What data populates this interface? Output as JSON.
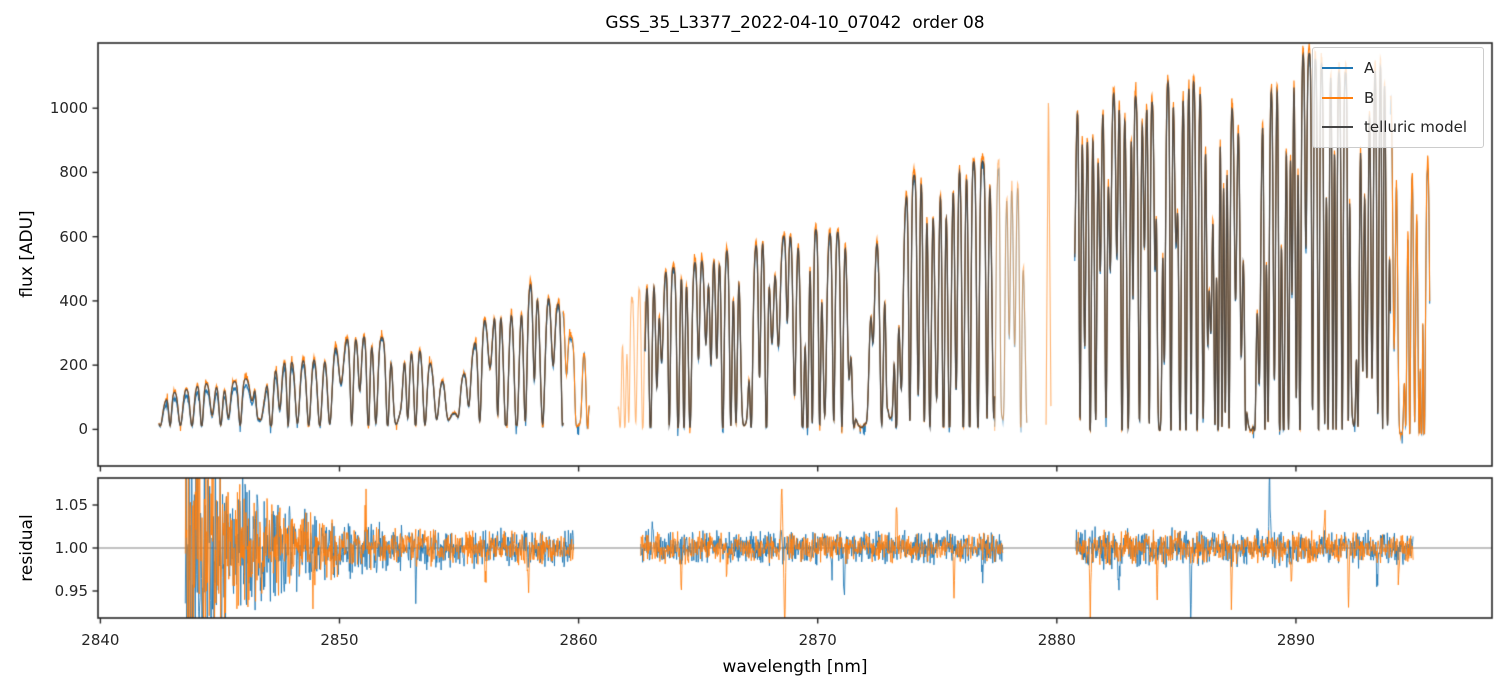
{
  "title": "GSS_35_L3377_2022-04-10_07042  order 08",
  "chart_data": {
    "type": "line",
    "title": "GSS_35_L3377_2022-04-10_07042  order 08",
    "xlabel": "wavelength [nm]",
    "xlim": [
      2839.9,
      2898.2
    ],
    "xticks": [
      2840,
      2850,
      2860,
      2870,
      2880,
      2890
    ],
    "xtick_labels": [
      "2840",
      "2850",
      "2860",
      "2870",
      "2880",
      "2890"
    ],
    "grid": false,
    "panels": [
      {
        "name": "flux",
        "ylabel": "flux [ADU]",
        "ylim": [
          -114,
          1203
        ],
        "yticks": [
          0,
          200,
          400,
          600,
          800,
          1000
        ],
        "ytick_labels": [
          "0",
          "200",
          "400",
          "600",
          "800",
          "1000"
        ],
        "xtick_labels_visible": false
      },
      {
        "name": "residual",
        "ylabel": "residual",
        "ylim": [
          0.9186,
          1.0814
        ],
        "yticks": [
          0.95,
          1.0,
          1.05
        ],
        "ytick_labels": [
          "0.95",
          "1.00",
          "1.05"
        ],
        "hline": 1.0,
        "hline_color": "#808080",
        "xtick_labels_visible": true
      }
    ],
    "legend": {
      "position": "upper right",
      "items": [
        {
          "label": "A",
          "color": "#1f77b4"
        },
        {
          "label": "B",
          "color": "#ff7f0e"
        },
        {
          "label": "telluric model",
          "color": "#454545"
        }
      ]
    },
    "series_colors": {
      "A": "#1f77b4",
      "B": "#ff7f0e",
      "model": "#454545"
    },
    "flux_segments": [
      {
        "x0": 2842.45,
        "x1": 2859.35,
        "series": [
          "A",
          "B",
          "model"
        ],
        "alpha": 1,
        "floor": 12,
        "envelope": [
          [
            2842.45,
            55
          ],
          [
            2842.8,
            100
          ],
          [
            2843.2,
            125
          ],
          [
            2843.7,
            130
          ],
          [
            2844.3,
            145
          ],
          [
            2845.0,
            150
          ],
          [
            2845.7,
            150
          ],
          [
            2846.3,
            165
          ],
          [
            2847.0,
            205
          ],
          [
            2847.7,
            215
          ],
          [
            2848.4,
            225
          ],
          [
            2849.0,
            235
          ],
          [
            2849.6,
            260
          ],
          [
            2850.1,
            285
          ],
          [
            2850.7,
            295
          ],
          [
            2851.3,
            300
          ],
          [
            2851.9,
            285
          ],
          [
            2852.4,
            235
          ],
          [
            2852.9,
            255
          ],
          [
            2853.3,
            270
          ],
          [
            2853.9,
            205
          ],
          [
            2854.3,
            160
          ],
          [
            2854.9,
            140
          ],
          [
            2855.4,
            200
          ],
          [
            2855.9,
            340
          ],
          [
            2856.5,
            385
          ],
          [
            2857.1,
            420
          ],
          [
            2857.7,
            450
          ],
          [
            2858.1,
            465
          ],
          [
            2858.6,
            445
          ],
          [
            2859.0,
            410
          ],
          [
            2859.35,
            375
          ]
        ],
        "lines": {
          "spacing": [
            0.3,
            0.5
          ],
          "width": [
            0.075,
            0.14
          ],
          "sat_frac": 0.5
        },
        "troughs": [
          [
            2846.65,
            0.16,
            0.12
          ],
          [
            2852.45,
            0.22,
            0.2
          ],
          [
            2854.7,
            0.26,
            0.3
          ]
        ]
      },
      {
        "x0": 2859.35,
        "x1": 2860.45,
        "series": [
          "A",
          "B"
        ],
        "alpha": 1,
        "floor": 10,
        "envelope": [
          [
            2859.35,
            375
          ],
          [
            2859.6,
            300
          ],
          [
            2859.9,
            250
          ],
          [
            2860.3,
            245
          ],
          [
            2860.45,
            120
          ]
        ],
        "lines": {
          "spacing": [
            0.32,
            0.45
          ],
          "width": [
            0.07,
            0.12
          ],
          "sat_frac": 0.4
        },
        "troughs": [
          [
            2860.0,
            0.16,
            0.03
          ]
        ]
      },
      {
        "x0": 2861.65,
        "x1": 2862.78,
        "series": [
          "B"
        ],
        "alpha": 0.55,
        "floor": 4,
        "envelope": [
          [
            2861.65,
            150
          ],
          [
            2861.8,
            470
          ],
          [
            2862.0,
            450
          ],
          [
            2862.2,
            410
          ],
          [
            2862.45,
            430
          ],
          [
            2862.65,
            480
          ],
          [
            2862.78,
            520
          ]
        ],
        "lines": {
          "spacing": [
            0.16,
            0.3
          ],
          "width": [
            0.05,
            0.09
          ],
          "sat_frac": 0.75
        },
        "troughs": []
      },
      {
        "x0": 2862.78,
        "x1": 2877.4,
        "series": [
          "A",
          "B",
          "model"
        ],
        "alpha": 1,
        "floor": 5,
        "envelope": [
          [
            2862.78,
            520
          ],
          [
            2863.4,
            500
          ],
          [
            2864.0,
            505
          ],
          [
            2864.6,
            520
          ],
          [
            2865.2,
            535
          ],
          [
            2865.8,
            550
          ],
          [
            2866.4,
            570
          ],
          [
            2867.0,
            560
          ],
          [
            2867.6,
            590
          ],
          [
            2868.1,
            635
          ],
          [
            2868.5,
            605
          ],
          [
            2869.2,
            615
          ],
          [
            2870.0,
            625
          ],
          [
            2870.8,
            620
          ],
          [
            2871.4,
            610
          ],
          [
            2872.5,
            605
          ],
          [
            2873.0,
            640
          ],
          [
            2873.5,
            700
          ],
          [
            2874.0,
            790
          ],
          [
            2874.5,
            830
          ],
          [
            2875.0,
            850
          ],
          [
            2875.5,
            845
          ],
          [
            2876.0,
            830
          ],
          [
            2876.4,
            840
          ],
          [
            2876.9,
            835
          ],
          [
            2877.4,
            830
          ]
        ],
        "lines": {
          "spacing": [
            0.2,
            0.38
          ],
          "width": [
            0.06,
            0.11
          ],
          "sat_frac": 0.62
        },
        "troughs": [
          [
            2866.95,
            0.2,
            0.03
          ],
          [
            2871.8,
            0.4,
            0.012
          ],
          [
            2873.05,
            0.16,
            0.05
          ]
        ]
      },
      {
        "x0": 2877.4,
        "x1": 2878.75,
        "series": [
          "A",
          "B"
        ],
        "alpha": 0.5,
        "floor": 5,
        "envelope": [
          [
            2877.4,
            830
          ],
          [
            2877.8,
            830
          ],
          [
            2878.2,
            840
          ],
          [
            2878.5,
            790
          ],
          [
            2878.7,
            300
          ],
          [
            2878.75,
            60
          ]
        ],
        "lines": {
          "spacing": [
            0.22,
            0.4
          ],
          "width": [
            0.06,
            0.1
          ],
          "sat_frac": 0.5
        },
        "troughs": [
          [
            2877.72,
            0.1,
            0.06
          ]
        ]
      },
      {
        "x0": 2879.55,
        "x1": 2879.76,
        "series": [
          "B"
        ],
        "alpha": 0.6,
        "floor": 0,
        "envelope": [
          [
            2879.55,
            15
          ],
          [
            2879.65,
            1045
          ],
          [
            2879.76,
            15
          ]
        ],
        "lines": null,
        "troughs": []
      },
      {
        "x0": 2880.75,
        "x1": 2893.95,
        "series": [
          "A",
          "B",
          "model"
        ],
        "alpha": 1,
        "floor": -5,
        "envelope": [
          [
            2880.75,
            1030
          ],
          [
            2881.3,
            980
          ],
          [
            2881.9,
            1050
          ],
          [
            2882.6,
            1060
          ],
          [
            2883.3,
            1040
          ],
          [
            2884.0,
            1030
          ],
          [
            2884.8,
            1105
          ],
          [
            2885.4,
            1100
          ],
          [
            2886.0,
            1080
          ],
          [
            2886.6,
            1060
          ],
          [
            2887.2,
            1020
          ],
          [
            2887.8,
            990
          ],
          [
            2888.6,
            1010
          ],
          [
            2889.2,
            1120
          ],
          [
            2889.8,
            1170
          ],
          [
            2890.4,
            1180
          ],
          [
            2891.0,
            1150
          ],
          [
            2891.6,
            1120
          ],
          [
            2892.2,
            1110
          ],
          [
            2892.8,
            1130
          ],
          [
            2893.4,
            1160
          ],
          [
            2893.95,
            1190
          ]
        ],
        "lines": {
          "spacing": [
            0.13,
            0.28
          ],
          "width": [
            0.042,
            0.085
          ],
          "sat_frac": 0.72
        },
        "troughs": [
          [
            2884.3,
            0.12,
            0.05
          ],
          [
            2888.1,
            0.3,
            0.015
          ],
          [
            2892.4,
            0.14,
            0.05
          ]
        ]
      },
      {
        "x0": 2893.95,
        "x1": 2895.6,
        "series": [
          "A",
          "B"
        ],
        "alpha": 1,
        "floor": -15,
        "envelope": [
          [
            2893.95,
            1100
          ],
          [
            2894.25,
            950
          ],
          [
            2894.5,
            860
          ],
          [
            2894.8,
            830
          ],
          [
            2895.1,
            840
          ],
          [
            2895.4,
            855
          ],
          [
            2895.6,
            860
          ]
        ],
        "lines": {
          "spacing": [
            0.15,
            0.3
          ],
          "width": [
            0.05,
            0.08
          ],
          "sat_frac": 0.8
        },
        "troughs": [
          [
            2894.4,
            0.16,
            0.0
          ],
          [
            2895.25,
            0.05,
            0.0
          ]
        ]
      }
    ],
    "residual_segments": [
      {
        "x0": 2843.55,
        "x1": 2859.8,
        "sigma": [
          [
            2843.55,
            0.105
          ],
          [
            2844.4,
            0.1
          ],
          [
            2845.1,
            0.06
          ],
          [
            2846.0,
            0.045
          ],
          [
            2847.0,
            0.038
          ],
          [
            2848.2,
            0.03
          ],
          [
            2849.5,
            0.024
          ],
          [
            2851.0,
            0.018
          ],
          [
            2853.0,
            0.014
          ],
          [
            2856.0,
            0.0125
          ],
          [
            2859.8,
            0.013
          ]
        ],
        "spikes": [
          {
            "x": 2848.9,
            "dy": -0.05,
            "series": "B"
          },
          {
            "x": 2851.1,
            "dy": 0.04,
            "series": "B"
          },
          {
            "x": 2853.2,
            "dy": -0.045,
            "series": "A"
          },
          {
            "x": 2856.1,
            "dy": -0.04,
            "series": "B"
          },
          {
            "x": 2857.9,
            "dy": -0.05,
            "series": "B"
          }
        ]
      },
      {
        "x0": 2862.6,
        "x1": 2877.75,
        "sigma": [
          [
            2862.6,
            0.012
          ],
          [
            2870.0,
            0.011
          ],
          [
            2877.75,
            0.011
          ]
        ],
        "spikes": [
          {
            "x": 2863.1,
            "dy": 0.035,
            "series": "A"
          },
          {
            "x": 2864.3,
            "dy": -0.045,
            "series": "B"
          },
          {
            "x": 2866.2,
            "dy": -0.03,
            "series": "B"
          },
          {
            "x": 2868.5,
            "dy": 0.075,
            "series": "B"
          },
          {
            "x": 2868.62,
            "dy": -0.09,
            "series": "B"
          },
          {
            "x": 2870.6,
            "dy": -0.04,
            "series": "A"
          },
          {
            "x": 2871.1,
            "dy": -0.05,
            "series": "A"
          },
          {
            "x": 2873.3,
            "dy": 0.04,
            "series": "B"
          },
          {
            "x": 2875.7,
            "dy": -0.06,
            "series": "B"
          },
          {
            "x": 2876.9,
            "dy": -0.035,
            "series": "A"
          }
        ]
      },
      {
        "x0": 2880.8,
        "x1": 2894.9,
        "sigma": [
          [
            2880.8,
            0.013
          ],
          [
            2888.0,
            0.012
          ],
          [
            2894.9,
            0.012
          ]
        ],
        "spikes": [
          {
            "x": 2881.4,
            "dy": -0.07,
            "series": "B"
          },
          {
            "x": 2882.6,
            "dy": -0.05,
            "series": "A"
          },
          {
            "x": 2884.2,
            "dy": -0.055,
            "series": "B"
          },
          {
            "x": 2885.6,
            "dy": -0.09,
            "series": "A"
          },
          {
            "x": 2887.3,
            "dy": -0.06,
            "series": "B"
          },
          {
            "x": 2888.9,
            "dy": 0.09,
            "series": "A"
          },
          {
            "x": 2889.8,
            "dy": -0.05,
            "series": "B"
          },
          {
            "x": 2891.2,
            "dy": 0.04,
            "series": "B"
          },
          {
            "x": 2892.2,
            "dy": -0.06,
            "series": "B"
          },
          {
            "x": 2893.4,
            "dy": -0.05,
            "series": "A"
          },
          {
            "x": 2894.3,
            "dy": -0.04,
            "series": "B"
          }
        ]
      }
    ],
    "render": {
      "seed": 20220410,
      "step": 0.012,
      "res_step": 0.02,
      "a_scale": [
        [
          2842.45,
          0.84
        ],
        [
          2846.0,
          0.86
        ],
        [
          2849.0,
          0.95
        ],
        [
          2851.0,
          0.985
        ],
        [
          2898.2,
          0.99
        ]
      ],
      "b_scale": [
        [
          2842.45,
          1.04
        ],
        [
          2850.0,
          1.02
        ],
        [
          2898.2,
          1.015
        ]
      ],
      "frame_color": "#262626",
      "background": "#ffffff"
    }
  }
}
